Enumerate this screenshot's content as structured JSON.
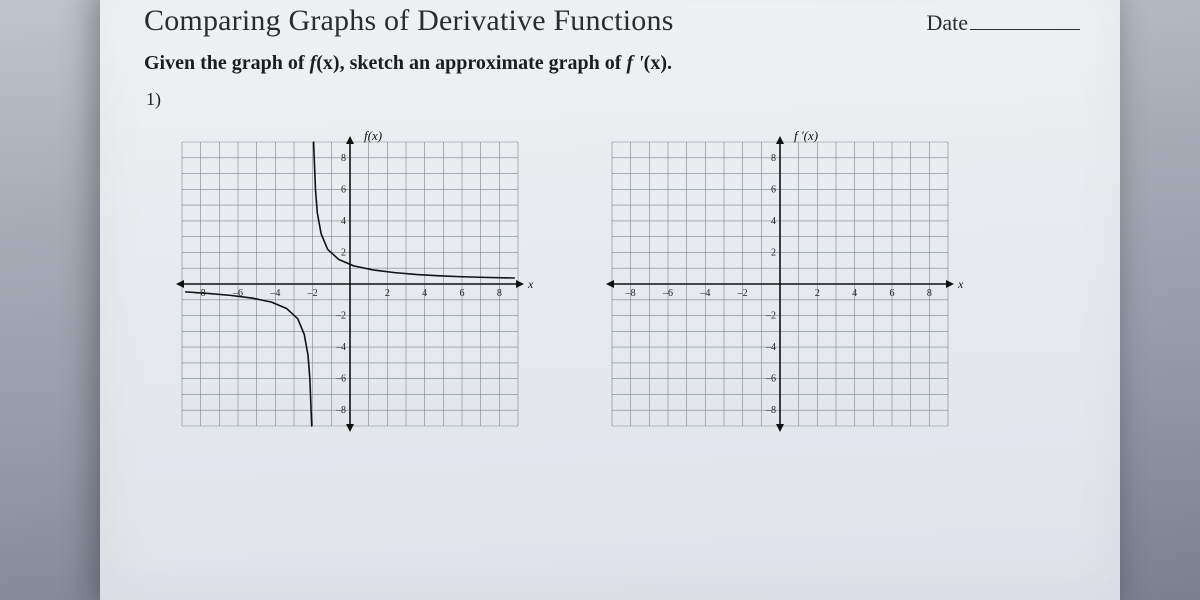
{
  "header": {
    "title": "Comparing Graphs of Derivative Functions",
    "date_label": "Date"
  },
  "subtitle": {
    "prefix": "Given the graph of ",
    "f": "f",
    "argx": "(x)",
    "middle": ", sketch an approximate graph of ",
    "fprime": "f '",
    "argx2": "(x)",
    "suffix": "."
  },
  "problem": {
    "number": "1)"
  },
  "axes": {
    "xlim": [
      -9,
      9
    ],
    "ylim": [
      -9,
      9
    ],
    "tick_step": 1,
    "label_ticks_x": [
      -8,
      -6,
      -4,
      -2,
      2,
      4,
      6,
      8
    ],
    "label_ticks_y": [
      -8,
      -6,
      -4,
      -2,
      2,
      4,
      6,
      8
    ],
    "grid_color": "#7e858f",
    "grid_width": 0.6,
    "axis_color": "#111111",
    "axis_width": 1.6,
    "tick_font_size": 10,
    "background_color": "transparent",
    "x_axis_label": "x"
  },
  "left_plot": {
    "type": "line",
    "y_axis_label": "f(x)",
    "curve": {
      "color": "#111111",
      "width": 1.6,
      "points_branch1": [
        [
          -2.05,
          -9
        ],
        [
          -2.1,
          -7.5
        ],
        [
          -2.15,
          -6
        ],
        [
          -2.25,
          -4.5
        ],
        [
          -2.45,
          -3.2
        ],
        [
          -2.8,
          -2.2
        ],
        [
          -3.4,
          -1.55
        ],
        [
          -4.2,
          -1.15
        ],
        [
          -5.2,
          -0.9
        ],
        [
          -6.4,
          -0.72
        ],
        [
          -7.6,
          -0.6
        ],
        [
          -8.8,
          -0.5
        ]
      ],
      "points_branch2": [
        [
          -1.95,
          9
        ],
        [
          -1.9,
          7.5
        ],
        [
          -1.85,
          6
        ],
        [
          -1.75,
          4.5
        ],
        [
          -1.55,
          3.2
        ],
        [
          -1.2,
          2.2
        ],
        [
          -0.6,
          1.55
        ],
        [
          0.2,
          1.15
        ],
        [
          1.2,
          0.9
        ],
        [
          2.4,
          0.72
        ],
        [
          3.6,
          0.6
        ],
        [
          4.8,
          0.52
        ],
        [
          6.0,
          0.46
        ],
        [
          7.2,
          0.42
        ],
        [
          8.8,
          0.38
        ]
      ],
      "asymptote_x": -2,
      "asymptote_dash": "4,4",
      "asymptote_color": "#111111"
    }
  },
  "right_plot": {
    "type": "grid",
    "y_axis_label": "f '(x)"
  }
}
